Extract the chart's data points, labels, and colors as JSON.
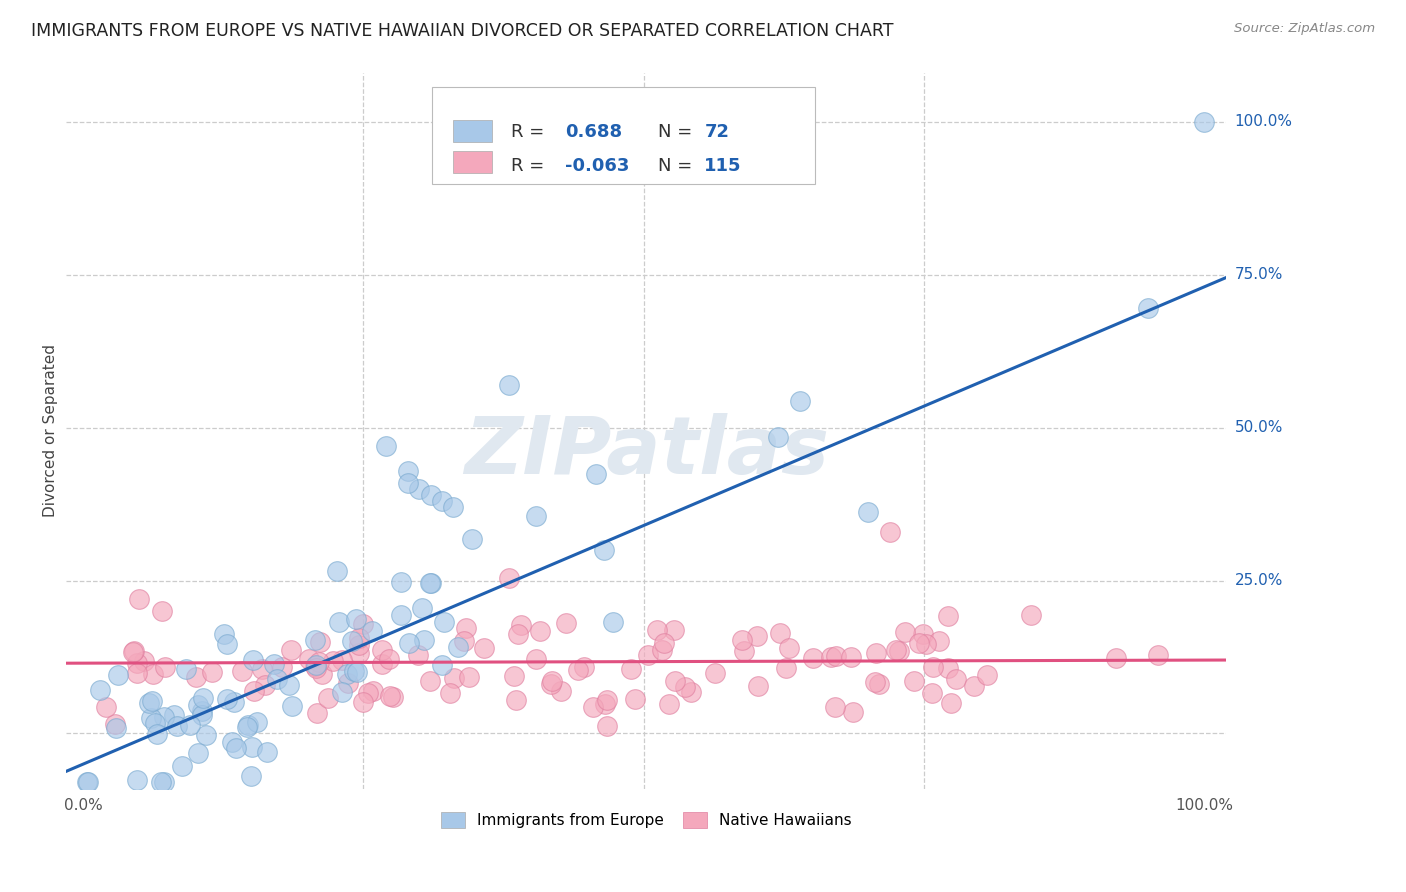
{
  "title": "IMMIGRANTS FROM EUROPE VS NATIVE HAWAIIAN DIVORCED OR SEPARATED CORRELATION CHART",
  "source": "Source: ZipAtlas.com",
  "ylabel": "Divorced or Separated",
  "xlabel": "",
  "blue_color": "#a8c8e8",
  "pink_color": "#f4a8bc",
  "blue_line_color": "#2060b0",
  "pink_line_color": "#e05080",
  "blue_scatter_edge": "#7aaad0",
  "pink_scatter_edge": "#e080a0",
  "R_blue": 0.688,
  "N_blue": 72,
  "R_pink": -0.063,
  "N_pink": 115,
  "watermark": "ZIPatlas",
  "background_color": "#ffffff",
  "grid_color": "#cccccc",
  "title_fontsize": 12.5,
  "axis_label_fontsize": 11,
  "tick_fontsize": 11,
  "legend_value_fontsize": 13,
  "blue_line_slope": 0.78,
  "blue_line_intercept": -0.05,
  "pink_line_slope": 0.005,
  "pink_line_intercept": 0.115,
  "ytick_positions": [
    0.0,
    0.25,
    0.5,
    0.75,
    1.0
  ],
  "ytick_labels": [
    "",
    "25.0%",
    "50.0%",
    "75.0%",
    "100.0%"
  ],
  "xtick_positions": [
    0.0,
    0.25,
    0.5,
    0.75,
    1.0
  ],
  "xtick_labels": [
    "0.0%",
    "",
    "",
    "",
    "100.0%"
  ]
}
